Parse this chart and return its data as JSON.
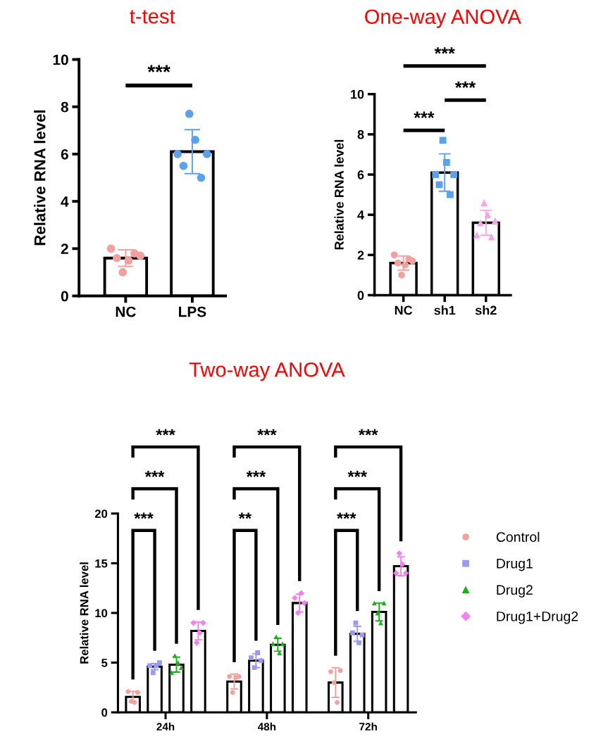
{
  "chart_data": [
    {
      "type": "bar",
      "title": "t-test",
      "ylabel": "Relative RNA level",
      "categories": [
        "NC",
        "LPS"
      ],
      "ylim": [
        0,
        10
      ],
      "yticks": [
        0,
        2,
        4,
        6,
        8,
        10
      ],
      "series": [
        {
          "color": "#ffffff",
          "values": [
            1.6,
            6.1
          ],
          "errors": [
            0.35,
            0.93
          ]
        },
        {
          "type": "scatter",
          "color": "#f4a09c",
          "marker": "circle",
          "x": [
            "NC",
            "NC",
            "NC",
            "NC",
            "NC",
            "NC"
          ],
          "values": [
            2.0,
            1.6,
            1.0,
            1.5,
            1.8,
            1.7
          ]
        },
        {
          "type": "scatter",
          "color": "#5aa2ee",
          "marker": "circle",
          "x": [
            "LPS",
            "LPS",
            "LPS",
            "LPS",
            "LPS",
            "LPS"
          ],
          "values": [
            6.0,
            5.5,
            7.7,
            6.6,
            5.0,
            6.0
          ]
        }
      ],
      "annotations": [
        "***"
      ]
    },
    {
      "type": "bar",
      "title": "One-way ANOVA",
      "ylabel": "Relative RNA level",
      "categories": [
        "NC",
        "sh1",
        "sh2"
      ],
      "ylim": [
        0,
        10
      ],
      "yticks": [
        0,
        2,
        4,
        6,
        8,
        10
      ],
      "series": [
        {
          "color": "#ffffff",
          "values": [
            1.6,
            6.1,
            3.6
          ],
          "errors": [
            0.35,
            0.93,
            0.62
          ]
        },
        {
          "type": "scatter",
          "color": "#f4a09c",
          "marker": "circle",
          "x": [
            "NC",
            "NC",
            "NC",
            "NC",
            "NC",
            "NC"
          ],
          "values": [
            2.0,
            1.6,
            1.0,
            1.5,
            1.8,
            1.7
          ]
        },
        {
          "type": "scatter",
          "color": "#5aa2ee",
          "marker": "square",
          "x": [
            "sh1",
            "sh1",
            "sh1",
            "sh1",
            "sh1",
            "sh1"
          ],
          "values": [
            6.0,
            5.5,
            7.7,
            6.6,
            5.0,
            6.0
          ]
        },
        {
          "type": "scatter",
          "color": "#f3a6e3",
          "marker": "triangle",
          "x": [
            "sh2",
            "sh2",
            "sh2",
            "sh2",
            "sh2",
            "sh2"
          ],
          "values": [
            3.0,
            3.6,
            4.6,
            4.0,
            2.9,
            3.7
          ]
        }
      ],
      "annotations": [
        "***",
        "***",
        "***"
      ]
    },
    {
      "type": "bar",
      "title": "Two-way ANOVA",
      "ylabel": "Relative RNA level",
      "categories": [
        "24h",
        "48h",
        "72h"
      ],
      "ylim": [
        0,
        20
      ],
      "yticks": [
        0,
        5,
        10,
        15,
        20
      ],
      "legend": "right",
      "series": [
        {
          "color": "#ffffff",
          "values": [
            1.55,
            3.1,
            3.0
          ],
          "errors": [
            0.55,
            0.75,
            1.5
          ]
        },
        {
          "color": "#ffffff",
          "values": [
            4.6,
            5.2,
            7.9
          ],
          "errors": [
            0.3,
            0.7,
            0.75
          ]
        },
        {
          "color": "#ffffff",
          "values": [
            4.8,
            6.8,
            10.1
          ],
          "errors": [
            0.75,
            0.65,
            0.9
          ]
        },
        {
          "color": "#ffffff",
          "values": [
            8.2,
            11.0,
            14.7
          ],
          "errors": [
            0.9,
            0.9,
            0.95
          ]
        },
        {
          "type": "scatter",
          "name": "Control",
          "color": "#f4a09c",
          "marker": "circle",
          "x": [
            "24h",
            "24h",
            "24h",
            "24h",
            "48h",
            "48h",
            "48h",
            "48h",
            "72h",
            "72h",
            "72h",
            "72h"
          ],
          "values": [
            2.1,
            1.1,
            1.0,
            2.0,
            3.6,
            2.0,
            3.5,
            3.6,
            4.1,
            3.0,
            1.0,
            4.2
          ]
        },
        {
          "type": "scatter",
          "name": "Drug1",
          "color": "#9a9af5",
          "marker": "square",
          "x": [
            "24h",
            "24h",
            "24h",
            "24h",
            "48h",
            "48h",
            "48h",
            "48h",
            "72h",
            "72h",
            "72h",
            "72h"
          ],
          "values": [
            4.7,
            4.0,
            4.7,
            5.0,
            5.5,
            4.5,
            6.0,
            5.2,
            8.0,
            9.0,
            7.0,
            7.8
          ]
        },
        {
          "type": "scatter",
          "name": "Drug2",
          "color": "#16b316",
          "marker": "triangle",
          "x": [
            "24h",
            "24h",
            "24h",
            "24h",
            "48h",
            "48h",
            "48h",
            "48h",
            "72h",
            "72h",
            "72h",
            "72h"
          ],
          "values": [
            4.0,
            5.7,
            5.0,
            4.5,
            6.9,
            7.6,
            6.0,
            6.9,
            11.0,
            10.0,
            9.0,
            11.0
          ]
        },
        {
          "type": "scatter",
          "name": "Drug1+Drug2",
          "color": "#f57ff0",
          "marker": "diamond",
          "x": [
            "24h",
            "24h",
            "24h",
            "24h",
            "48h",
            "48h",
            "48h",
            "48h",
            "72h",
            "72h",
            "72h",
            "72h"
          ],
          "values": [
            9.0,
            7.0,
            8.0,
            9.0,
            11.5,
            10.0,
            12.0,
            11.0,
            14.0,
            16.0,
            14.9,
            14.0
          ]
        }
      ],
      "annotations": [
        "***",
        "***",
        "***",
        "**",
        "***",
        "***",
        "***",
        "***",
        "***"
      ]
    }
  ]
}
